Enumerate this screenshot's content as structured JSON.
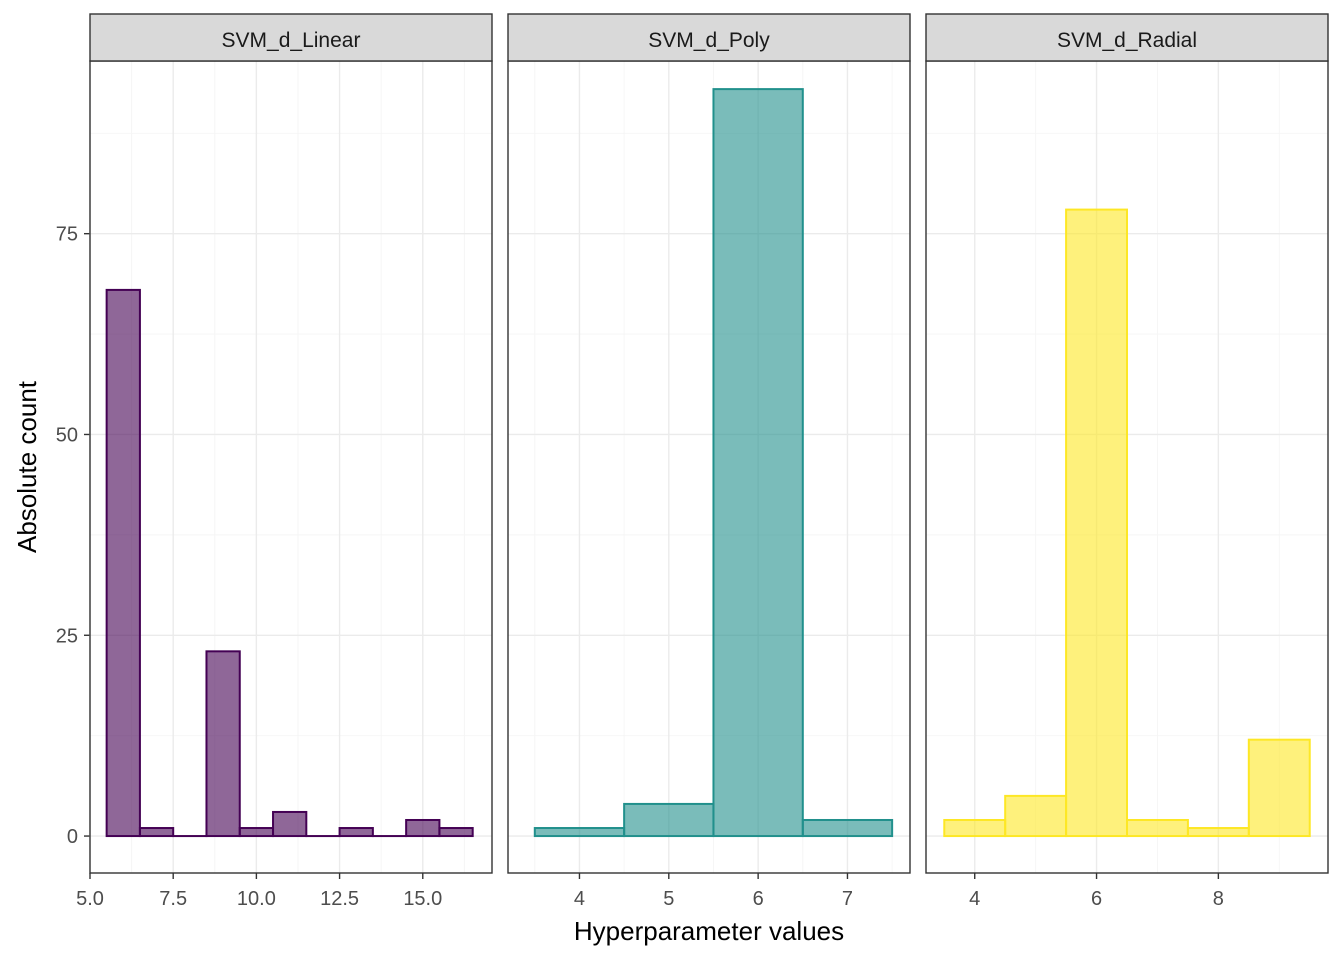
{
  "chart_data": {
    "type": "bar",
    "xlabel": "Hyperparameter values",
    "ylabel": "Absolute count",
    "ylim": [
      -4.6,
      96.5
    ],
    "y_ticks": [
      0,
      25,
      50,
      75
    ],
    "y_tick_labels": [
      "0",
      "25",
      "50",
      "75"
    ],
    "grid": true,
    "colors": {
      "linear": "#440154",
      "poly": "#21908C",
      "radial": "#FDE725"
    },
    "panels": [
      {
        "name": "SVM_d_Linear",
        "color": "#440154",
        "xlim": [
          5.0,
          17.08
        ],
        "x_ticks": [
          5.0,
          7.5,
          10.0,
          12.5,
          15.0
        ],
        "x_tick_labels": [
          "5.0",
          "7.5",
          "10.0",
          "12.5",
          "15.0"
        ],
        "bin_width": 1.0,
        "bin_centers": [
          6,
          7,
          8,
          9,
          10,
          11,
          12,
          13,
          14,
          15,
          16
        ],
        "counts": [
          68,
          1,
          0,
          23,
          1,
          3,
          0,
          1,
          0,
          2,
          1
        ]
      },
      {
        "name": "SVM_d_Poly",
        "color": "#21908C",
        "xlim": [
          3.2,
          7.7
        ],
        "x_ticks": [
          4,
          5,
          6,
          7
        ],
        "x_tick_labels": [
          "4",
          "5",
          "6",
          "7"
        ],
        "bin_width": 1.0,
        "bin_centers": [
          4,
          5,
          6,
          7
        ],
        "counts": [
          1,
          4,
          93,
          2
        ]
      },
      {
        "name": "SVM_d_Radial",
        "color": "#FDE725",
        "xlim": [
          3.2,
          9.8
        ],
        "x_ticks": [
          4,
          6,
          8
        ],
        "x_tick_labels": [
          "4",
          "6",
          "8"
        ],
        "bin_width": 1.0,
        "bin_centers": [
          4,
          5,
          6,
          7,
          8,
          9
        ],
        "counts": [
          2,
          5,
          78,
          2,
          1,
          12
        ]
      }
    ]
  }
}
